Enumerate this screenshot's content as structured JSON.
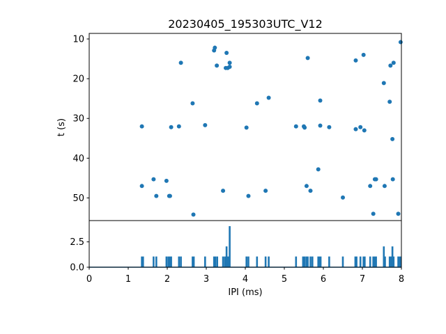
{
  "chart_data": [
    {
      "type": "scatter",
      "title": "20230405_195303UTC_V12",
      "xlabel": "",
      "ylabel": "t (s)",
      "xlim": [
        0,
        8
      ],
      "ylim": [
        55.7,
        8.6
      ],
      "y_inverted": true,
      "yticks": [
        10,
        20,
        30,
        40,
        50
      ],
      "xticks_shown": false,
      "grid": false,
      "marker_color": "#1f77b4",
      "points": [
        {
          "x": 1.35,
          "y": 32.0
        },
        {
          "x": 1.35,
          "y": 47.0
        },
        {
          "x": 1.65,
          "y": 45.3
        },
        {
          "x": 1.72,
          "y": 49.5
        },
        {
          "x": 1.98,
          "y": 45.7
        },
        {
          "x": 2.05,
          "y": 49.5
        },
        {
          "x": 2.07,
          "y": 49.5
        },
        {
          "x": 2.1,
          "y": 32.2
        },
        {
          "x": 2.3,
          "y": 32.0
        },
        {
          "x": 2.35,
          "y": 16.0
        },
        {
          "x": 2.65,
          "y": 26.2
        },
        {
          "x": 2.67,
          "y": 54.2
        },
        {
          "x": 2.97,
          "y": 31.7
        },
        {
          "x": 3.2,
          "y": 12.9
        },
        {
          "x": 3.22,
          "y": 12.2
        },
        {
          "x": 3.27,
          "y": 16.7
        },
        {
          "x": 3.43,
          "y": 48.2
        },
        {
          "x": 3.5,
          "y": 17.3
        },
        {
          "x": 3.52,
          "y": 13.5
        },
        {
          "x": 3.55,
          "y": 17.3
        },
        {
          "x": 3.6,
          "y": 16.0
        },
        {
          "x": 3.6,
          "y": 17.0
        },
        {
          "x": 4.03,
          "y": 32.3
        },
        {
          "x": 4.08,
          "y": 49.5
        },
        {
          "x": 4.3,
          "y": 26.2
        },
        {
          "x": 4.52,
          "y": 48.2
        },
        {
          "x": 4.6,
          "y": 24.8
        },
        {
          "x": 5.3,
          "y": 32.0
        },
        {
          "x": 5.5,
          "y": 32.0
        },
        {
          "x": 5.52,
          "y": 32.3
        },
        {
          "x": 5.57,
          "y": 47.0
        },
        {
          "x": 5.6,
          "y": 14.8
        },
        {
          "x": 5.67,
          "y": 48.2
        },
        {
          "x": 5.87,
          "y": 42.8
        },
        {
          "x": 5.92,
          "y": 25.5
        },
        {
          "x": 5.92,
          "y": 31.8
        },
        {
          "x": 6.15,
          "y": 32.2
        },
        {
          "x": 6.5,
          "y": 49.9
        },
        {
          "x": 6.83,
          "y": 15.4
        },
        {
          "x": 6.83,
          "y": 32.7
        },
        {
          "x": 6.95,
          "y": 32.2
        },
        {
          "x": 7.03,
          "y": 14.0
        },
        {
          "x": 7.05,
          "y": 33.0
        },
        {
          "x": 7.2,
          "y": 47.0
        },
        {
          "x": 7.28,
          "y": 54.0
        },
        {
          "x": 7.32,
          "y": 45.3
        },
        {
          "x": 7.35,
          "y": 45.3
        },
        {
          "x": 7.55,
          "y": 21.1
        },
        {
          "x": 7.57,
          "y": 47.0
        },
        {
          "x": 7.7,
          "y": 25.8
        },
        {
          "x": 7.72,
          "y": 16.7
        },
        {
          "x": 7.77,
          "y": 35.2
        },
        {
          "x": 7.78,
          "y": 45.3
        },
        {
          "x": 7.8,
          "y": 16.0
        },
        {
          "x": 7.92,
          "y": 54.0
        },
        {
          "x": 7.98,
          "y": 10.8
        }
      ]
    },
    {
      "type": "line",
      "title": "",
      "xlabel": "IPI (ms)",
      "ylabel": "",
      "xlim": [
        0,
        8
      ],
      "ylim": [
        0,
        4.6
      ],
      "xticks": [
        0,
        1,
        2,
        3,
        4,
        5,
        6,
        7,
        8
      ],
      "yticks": [
        0.0,
        2.5
      ],
      "ytick_labels": [
        "0.0",
        "2.5"
      ],
      "grid": false,
      "line_color": "#1f77b4",
      "baseline": 0,
      "peak_halfwidth": 0.01,
      "peaks": [
        {
          "x": 1.35,
          "y": 1.0
        },
        {
          "x": 1.38,
          "y": 1.0
        },
        {
          "x": 1.65,
          "y": 1.0
        },
        {
          "x": 1.72,
          "y": 1.0
        },
        {
          "x": 1.98,
          "y": 1.0
        },
        {
          "x": 2.03,
          "y": 1.0
        },
        {
          "x": 2.07,
          "y": 1.0
        },
        {
          "x": 2.1,
          "y": 1.0
        },
        {
          "x": 2.3,
          "y": 1.0
        },
        {
          "x": 2.35,
          "y": 1.0
        },
        {
          "x": 2.65,
          "y": 1.0
        },
        {
          "x": 2.68,
          "y": 1.0
        },
        {
          "x": 2.97,
          "y": 1.0
        },
        {
          "x": 3.2,
          "y": 1.0
        },
        {
          "x": 3.23,
          "y": 1.0
        },
        {
          "x": 3.28,
          "y": 1.0
        },
        {
          "x": 3.43,
          "y": 1.0
        },
        {
          "x": 3.48,
          "y": 1.0
        },
        {
          "x": 3.52,
          "y": 2.0
        },
        {
          "x": 3.56,
          "y": 1.0
        },
        {
          "x": 3.6,
          "y": 4.0
        },
        {
          "x": 4.03,
          "y": 1.0
        },
        {
          "x": 4.08,
          "y": 1.0
        },
        {
          "x": 4.3,
          "y": 1.0
        },
        {
          "x": 4.52,
          "y": 1.0
        },
        {
          "x": 4.6,
          "y": 1.0
        },
        {
          "x": 5.3,
          "y": 1.0
        },
        {
          "x": 5.48,
          "y": 1.0
        },
        {
          "x": 5.52,
          "y": 1.0
        },
        {
          "x": 5.57,
          "y": 1.0
        },
        {
          "x": 5.6,
          "y": 1.0
        },
        {
          "x": 5.67,
          "y": 1.0
        },
        {
          "x": 5.72,
          "y": 1.0
        },
        {
          "x": 5.87,
          "y": 1.0
        },
        {
          "x": 5.9,
          "y": 1.0
        },
        {
          "x": 5.93,
          "y": 1.0
        },
        {
          "x": 6.15,
          "y": 1.0
        },
        {
          "x": 6.5,
          "y": 1.0
        },
        {
          "x": 6.82,
          "y": 1.0
        },
        {
          "x": 6.85,
          "y": 1.0
        },
        {
          "x": 6.95,
          "y": 1.0
        },
        {
          "x": 7.03,
          "y": 1.0
        },
        {
          "x": 7.06,
          "y": 1.0
        },
        {
          "x": 7.2,
          "y": 1.0
        },
        {
          "x": 7.28,
          "y": 1.0
        },
        {
          "x": 7.32,
          "y": 1.0
        },
        {
          "x": 7.35,
          "y": 1.0
        },
        {
          "x": 7.55,
          "y": 2.0
        },
        {
          "x": 7.58,
          "y": 1.0
        },
        {
          "x": 7.7,
          "y": 1.0
        },
        {
          "x": 7.73,
          "y": 1.0
        },
        {
          "x": 7.77,
          "y": 2.0
        },
        {
          "x": 7.8,
          "y": 1.0
        },
        {
          "x": 7.92,
          "y": 1.0
        },
        {
          "x": 7.95,
          "y": 1.0
        },
        {
          "x": 7.98,
          "y": 1.0
        }
      ]
    }
  ]
}
